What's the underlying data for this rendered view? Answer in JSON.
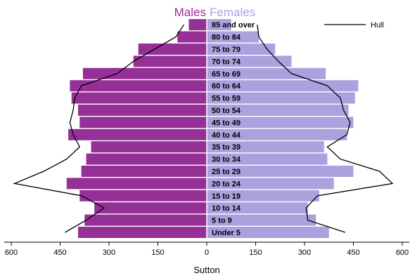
{
  "chart_data": {
    "type": "bar",
    "orientation": "horizontal",
    "subtype": "population-pyramid",
    "title_parts": [
      {
        "text": "Males",
        "color": "#953097"
      },
      {
        "text": "Females",
        "color": "#a9a2de"
      }
    ],
    "xlabel": "Sutton",
    "x_ticks": [
      600,
      450,
      300,
      150,
      0,
      150,
      300,
      450,
      600
    ],
    "xlim": [
      -600,
      600
    ],
    "categories": [
      "Under 5",
      "5 to 9",
      "10 to 14",
      "15 to 19",
      "20 to 24",
      "25 to 29",
      "30 to 34",
      "35 to 39",
      "40 to 44",
      "45 to 49",
      "50 to 54",
      "55 to 59",
      "60 to 64",
      "65 to 69",
      "70 to 74",
      "75 to 79",
      "80 to 84",
      "85 and over"
    ],
    "series": [
      {
        "name": "Males",
        "color": "#953097",
        "values": [
          395,
          375,
          345,
          390,
          430,
          385,
          370,
          355,
          425,
          390,
          395,
          415,
          420,
          380,
          225,
          210,
          90,
          55
        ]
      },
      {
        "name": "Females",
        "color": "#a9a2de",
        "values": [
          375,
          335,
          310,
          345,
          390,
          450,
          370,
          360,
          430,
          450,
          435,
          455,
          465,
          365,
          260,
          210,
          160,
          75
        ]
      }
    ],
    "overlay": {
      "name": "Hull",
      "color": "#000000",
      "males": [
        435,
        370,
        315,
        385,
        590,
        500,
        430,
        390,
        410,
        420,
        410,
        405,
        385,
        275,
        225,
        160,
        95,
        70
      ],
      "females": [
        425,
        310,
        305,
        340,
        570,
        530,
        410,
        370,
        430,
        440,
        420,
        410,
        370,
        260,
        220,
        185,
        160,
        155
      ]
    },
    "legend": {
      "position": "top-right",
      "entries": [
        "Hull"
      ]
    },
    "grid": false
  }
}
